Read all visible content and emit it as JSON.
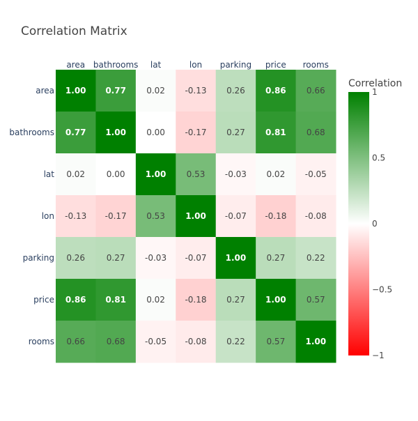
{
  "chart_data": {
    "type": "heatmap",
    "title": "Correlation Matrix",
    "x_labels": [
      "area",
      "bathrooms",
      "lat",
      "lon",
      "parking",
      "price",
      "rooms"
    ],
    "y_labels": [
      "area",
      "bathrooms",
      "lat",
      "lon",
      "parking",
      "price",
      "rooms"
    ],
    "values": [
      [
        1.0,
        0.77,
        0.02,
        -0.13,
        0.26,
        0.86,
        0.66
      ],
      [
        0.77,
        1.0,
        0.0,
        -0.17,
        0.27,
        0.81,
        0.68
      ],
      [
        0.02,
        0.0,
        1.0,
        0.53,
        -0.03,
        0.02,
        -0.05
      ],
      [
        -0.13,
        -0.17,
        0.53,
        1.0,
        -0.07,
        -0.18,
        -0.08
      ],
      [
        0.26,
        0.27,
        -0.03,
        -0.07,
        1.0,
        0.27,
        0.22
      ],
      [
        0.86,
        0.81,
        0.02,
        -0.18,
        0.27,
        1.0,
        0.57
      ],
      [
        0.66,
        0.68,
        -0.05,
        -0.08,
        0.22,
        0.57,
        1.0
      ]
    ],
    "zlim": [
      -1,
      1
    ],
    "colorscale": [
      {
        "value": -1,
        "color": "#ff0000"
      },
      {
        "value": 0,
        "color": "#ffffff"
      },
      {
        "value": 1,
        "color": "#008000"
      }
    ],
    "colorbar": {
      "title": "Correlation",
      "ticks": [
        1,
        0.5,
        0,
        -0.5,
        -1
      ],
      "tick_labels": [
        "1",
        "0.5",
        "0",
        "−0.5",
        "−1"
      ]
    },
    "text_format": "0.00",
    "x_axis_position": "top",
    "grid": false,
    "text_colors": {
      "dark": "#444444",
      "light": "#ffffff"
    },
    "label_color": "#2a3f5f",
    "axis_label_color": "#444444"
  }
}
